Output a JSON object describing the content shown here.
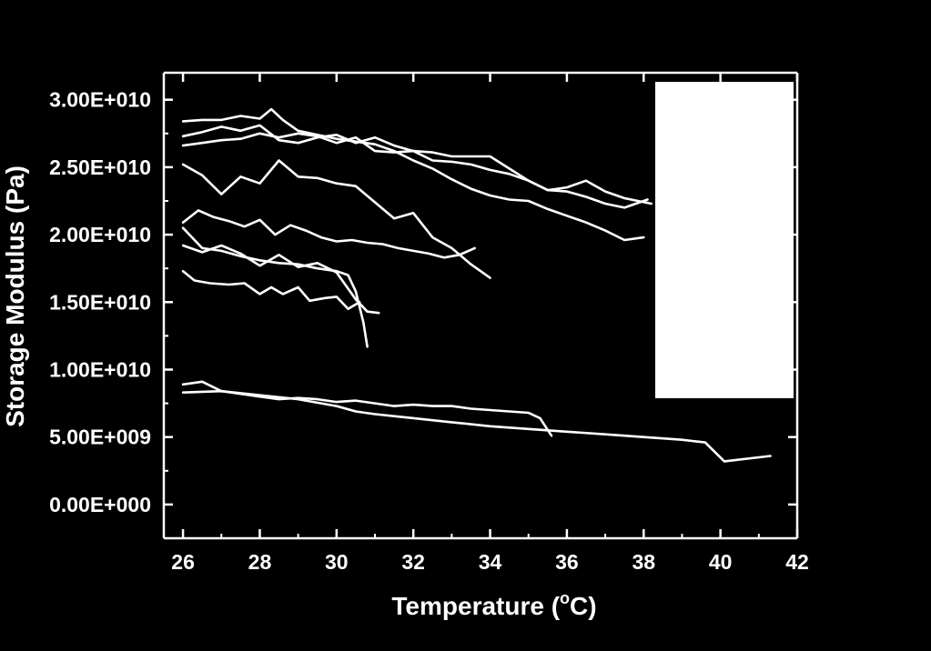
{
  "chart_data": {
    "type": "line",
    "xlabel": "Temperature (",
    "xlabel_sup": "o",
    "xlabel_end": "C)",
    "ylabel": "Storage Modulus (Pa)",
    "xlim": [
      25.5,
      42
    ],
    "ylim": [
      -2500000000.0,
      32000000000.0
    ],
    "xticks": [
      26,
      28,
      30,
      32,
      34,
      36,
      38,
      40,
      42
    ],
    "xtick_labels": [
      "26",
      "28",
      "30",
      "32",
      "34",
      "36",
      "38",
      "40",
      "42"
    ],
    "yticks": [
      0,
      5000000000.0,
      10000000000.0,
      15000000000.0,
      20000000000.0,
      25000000000.0,
      30000000000.0
    ],
    "ytick_labels": [
      "0.00E+000",
      "5.00E+009",
      "1.00E+010",
      "1.50E+010",
      "2.00E+010",
      "2.50E+010",
      "3.00E+010"
    ],
    "grid": false,
    "legend": {
      "placement": "top-right",
      "entries": []
    },
    "colors": {
      "background": "#000000",
      "foreground": "#ffffff",
      "legend_box": "#ffffff"
    },
    "series": [
      {
        "x": [
          26,
          26.5,
          27,
          27.5,
          28,
          28.3,
          28.6,
          29,
          29.5,
          30,
          30.5,
          31,
          31.5,
          32,
          32.5,
          33,
          33.5,
          34,
          34.5,
          35,
          35.5,
          36,
          36.5,
          37,
          37.5,
          38
        ],
        "y": [
          28400000000.0,
          28500000000.0,
          28500000000.0,
          28800000000.0,
          28600000000.0,
          29300000000.0,
          28500000000.0,
          27700000000.0,
          27400000000.0,
          27100000000.0,
          26900000000.0,
          26700000000.0,
          26200000000.0,
          25500000000.0,
          24900000000.0,
          24100000000.0,
          23400000000.0,
          22900000000.0,
          22600000000.0,
          22500000000.0,
          21900000000.0,
          21400000000.0,
          20900000000.0,
          20300000000.0,
          19600000000.0,
          19800000000.0
        ]
      },
      {
        "x": [
          26,
          26.5,
          27,
          27.5,
          28,
          28.5,
          29,
          29.5,
          30,
          30.5,
          31,
          31.5,
          32,
          32.5,
          33,
          33.5,
          34,
          34.5,
          35,
          35.5,
          36,
          36.5,
          37,
          37.5,
          38.1
        ],
        "y": [
          27300000000.0,
          27600000000.0,
          28000000000.0,
          27700000000.0,
          28100000000.0,
          27000000000.0,
          26800000000.0,
          27200000000.0,
          27400000000.0,
          26800000000.0,
          27200000000.0,
          26600000000.0,
          26200000000.0,
          26100000000.0,
          25800000000.0,
          25800000000.0,
          25800000000.0,
          24900000000.0,
          24000000000.0,
          23300000000.0,
          23200000000.0,
          22800000000.0,
          22300000000.0,
          22000000000.0,
          22600000000.0
        ]
      },
      {
        "x": [
          26,
          26.5,
          27,
          27.5,
          28,
          28.5,
          29,
          29.5,
          30,
          30.5,
          31,
          31.5,
          32,
          32.5,
          33,
          33.5,
          34,
          34.5,
          35,
          35.5,
          36,
          36.5,
          37,
          37.5,
          38.2
        ],
        "y": [
          26600000000.0,
          26800000000.0,
          27000000000.0,
          27100000000.0,
          27500000000.0,
          27200000000.0,
          27500000000.0,
          27300000000.0,
          26800000000.0,
          27200000000.0,
          26200000000.0,
          26100000000.0,
          26200000000.0,
          25500000000.0,
          25400000000.0,
          25200000000.0,
          24800000000.0,
          24500000000.0,
          24000000000.0,
          23300000000.0,
          23500000000.0,
          24000000000.0,
          23200000000.0,
          22700000000.0,
          22300000000.0
        ]
      },
      {
        "x": [
          26,
          26.5,
          27,
          27.5,
          28,
          28.5,
          29,
          29.5,
          30,
          30.5,
          31,
          31.5,
          32,
          32.5,
          33,
          33.5,
          34
        ],
        "y": [
          25200000000.0,
          24400000000.0,
          23000000000.0,
          24300000000.0,
          23800000000.0,
          25500000000.0,
          24300000000.0,
          24200000000.0,
          23800000000.0,
          23600000000.0,
          22400000000.0,
          21200000000.0,
          21600000000.0,
          19800000000.0,
          19000000000.0,
          17800000000.0,
          16800000000.0
        ]
      },
      {
        "x": [
          26,
          26.4,
          26.8,
          27.2,
          27.6,
          28,
          28.4,
          28.8,
          29.2,
          29.6,
          30,
          30.4,
          30.8,
          31.2,
          31.6,
          32,
          32.4,
          32.8,
          33.2,
          33.6
        ],
        "y": [
          20900000000.0,
          21800000000.0,
          21300000000.0,
          21000000000.0,
          20600000000.0,
          21100000000.0,
          20000000000.0,
          20700000000.0,
          20300000000.0,
          19800000000.0,
          19500000000.0,
          19600000000.0,
          19400000000.0,
          19300000000.0,
          19000000000.0,
          18800000000.0,
          18600000000.0,
          18300000000.0,
          18500000000.0,
          19000000000.0
        ]
      },
      {
        "x": [
          26,
          26.5,
          27,
          27.5,
          28,
          28.5,
          29,
          29.5,
          30,
          30.3,
          30.5,
          30.7,
          30.8
        ],
        "y": [
          20500000000.0,
          19000000000.0,
          18800000000.0,
          18400000000.0,
          18100000000.0,
          17900000000.0,
          17800000000.0,
          17500000000.0,
          17300000000.0,
          17000000000.0,
          15800000000.0,
          13500000000.0,
          11700000000.0
        ]
      },
      {
        "x": [
          26,
          26.5,
          27,
          27.5,
          28,
          28.5,
          29,
          29.5,
          30,
          30.5,
          30.8,
          31.1
        ],
        "y": [
          19200000000.0,
          18700000000.0,
          19200000000.0,
          18600000000.0,
          17700000000.0,
          18500000000.0,
          17600000000.0,
          17900000000.0,
          17200000000.0,
          15200000000.0,
          14300000000.0,
          14200000000.0
        ]
      },
      {
        "x": [
          26,
          26.3,
          26.7,
          27.2,
          27.6,
          28,
          28.3,
          28.6,
          29,
          29.3,
          29.7,
          30,
          30.3,
          30.6
        ],
        "y": [
          17300000000.0,
          16600000000.0,
          16400000000.0,
          16300000000.0,
          16400000000.0,
          15600000000.0,
          16100000000.0,
          15600000000.0,
          16100000000.0,
          15100000000.0,
          15300000000.0,
          15400000000.0,
          14500000000.0,
          15000000000.0
        ]
      },
      {
        "x": [
          26,
          26.5,
          27,
          27.5,
          28,
          28.5,
          29,
          29.5,
          30,
          30.5,
          31,
          31.5,
          32,
          32.5,
          33,
          33.5,
          34,
          34.5,
          35,
          35.3,
          35.6
        ],
        "y": [
          8900000000.0,
          9100000000.0,
          8400000000.0,
          8200000000.0,
          8000000000.0,
          7800000000.0,
          7900000000.0,
          7800000000.0,
          7600000000.0,
          7700000000.0,
          7500000000.0,
          7300000000.0,
          7400000000.0,
          7300000000.0,
          7300000000.0,
          7100000000.0,
          7000000000.0,
          6900000000.0,
          6800000000.0,
          6400000000.0,
          5100000000.0
        ]
      },
      {
        "x": [
          26,
          27,
          28,
          29,
          30,
          30.5,
          31,
          32,
          33,
          34,
          35,
          36,
          37,
          38,
          39,
          39.6,
          40.1,
          41.3
        ],
        "y": [
          8300000000.0,
          8400000000.0,
          8100000000.0,
          7800000000.0,
          7300000000.0,
          6900000000.0,
          6700000000.0,
          6400000000.0,
          6100000000.0,
          5800000000.0,
          5600000000.0,
          5400000000.0,
          5200000000.0,
          5000000000.0,
          4800000000.0,
          4600000000.0,
          3200000000.0,
          3600000000.0
        ]
      }
    ]
  }
}
